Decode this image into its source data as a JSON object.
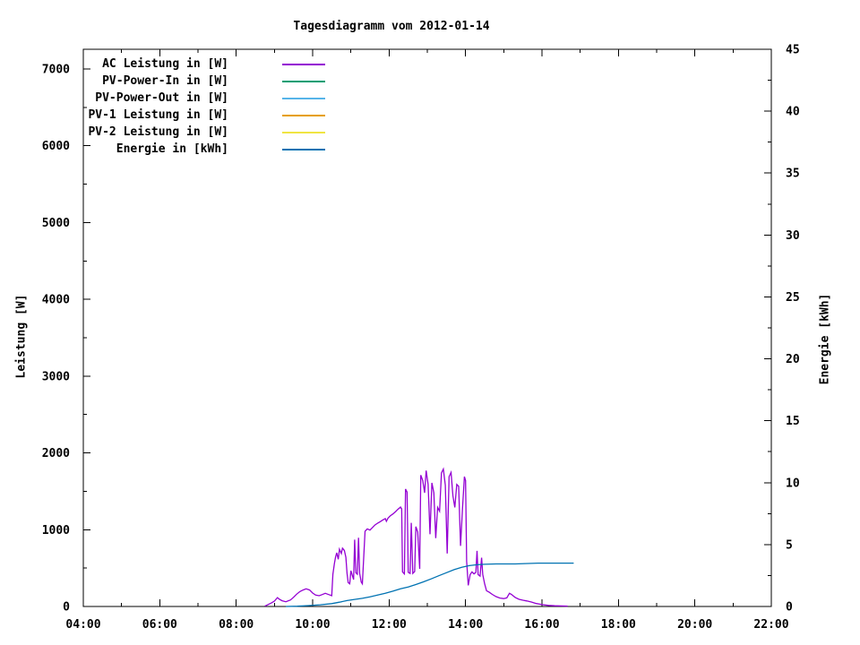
{
  "chart_data": {
    "type": "line",
    "title": "Tagesdiagramm vom 2012-01-14",
    "xlabel": "",
    "ylabel_left": "Leistung [W]",
    "ylabel_right": "Energie [kWh]",
    "x_axis": {
      "range_hours": [
        4,
        22
      ],
      "major_tick_hours": [
        4,
        6,
        8,
        10,
        12,
        14,
        16,
        18,
        20,
        22
      ],
      "minor_tick_hours": [
        5,
        7,
        9,
        11,
        13,
        15,
        17,
        19,
        21
      ],
      "tick_labels": [
        "04:00",
        "06:00",
        "08:00",
        "10:00",
        "12:00",
        "14:00",
        "16:00",
        "18:00",
        "20:00",
        "22:00"
      ]
    },
    "y_left_axis": {
      "label": "Leistung [W]",
      "range": [
        0,
        7250
      ],
      "major_ticks": [
        0,
        1000,
        2000,
        3000,
        4000,
        5000,
        6000,
        7000
      ],
      "minor_tick_step": 500,
      "tick_labels": [
        "0",
        "1000",
        "2000",
        "3000",
        "4000",
        "5000",
        "6000",
        "7000"
      ]
    },
    "y_right_axis": {
      "label": "Energie [kWh]",
      "range": [
        0,
        45
      ],
      "major_ticks": [
        0,
        5,
        10,
        15,
        20,
        25,
        30,
        35,
        40,
        45
      ],
      "minor_tick_step": 2.5,
      "tick_labels": [
        "0",
        "5",
        "10",
        "15",
        "20",
        "25",
        "30",
        "35",
        "40",
        "45"
      ]
    },
    "grid": false,
    "legend_position": "top-left-inside",
    "colors": {
      "foreground": "#000000",
      "background": "#ffffff"
    },
    "legend": [
      {
        "label": "AC Leistung in [W]",
        "color": "#9400D3"
      },
      {
        "label": "PV-Power-In in [W]",
        "color": "#009E73"
      },
      {
        "label": "PV-Power-Out in [W]",
        "color": "#56B4E9"
      },
      {
        "label": "PV-1 Leistung in [W]",
        "color": "#E69F00"
      },
      {
        "label": "PV-2 Leistung in [W]",
        "color": "#F0E442"
      },
      {
        "label": "Energie in [kWh]",
        "color": "#0072B2"
      }
    ],
    "series": [
      {
        "name": "AC Leistung in [W]",
        "color": "#9400D3",
        "axis": "y1",
        "unit": "W",
        "points": [
          [
            8.75,
            5
          ],
          [
            8.83,
            25
          ],
          [
            8.92,
            45
          ],
          [
            9.0,
            70
          ],
          [
            9.08,
            115
          ],
          [
            9.13,
            95
          ],
          [
            9.2,
            75
          ],
          [
            9.3,
            62
          ],
          [
            9.42,
            85
          ],
          [
            9.5,
            120
          ],
          [
            9.58,
            160
          ],
          [
            9.67,
            195
          ],
          [
            9.75,
            215
          ],
          [
            9.83,
            230
          ],
          [
            9.92,
            215
          ],
          [
            10.0,
            175
          ],
          [
            10.08,
            148
          ],
          [
            10.17,
            140
          ],
          [
            10.25,
            155
          ],
          [
            10.33,
            172
          ],
          [
            10.42,
            155
          ],
          [
            10.5,
            140
          ],
          [
            10.53,
            420
          ],
          [
            10.57,
            560
          ],
          [
            10.6,
            645
          ],
          [
            10.63,
            700
          ],
          [
            10.67,
            615
          ],
          [
            10.7,
            745
          ],
          [
            10.75,
            690
          ],
          [
            10.78,
            760
          ],
          [
            10.83,
            730
          ],
          [
            10.87,
            640
          ],
          [
            10.9,
            430
          ],
          [
            10.93,
            310
          ],
          [
            10.97,
            295
          ],
          [
            11.0,
            465
          ],
          [
            11.03,
            420
          ],
          [
            11.07,
            350
          ],
          [
            11.1,
            870
          ],
          [
            11.13,
            440
          ],
          [
            11.17,
            420
          ],
          [
            11.2,
            895
          ],
          [
            11.23,
            430
          ],
          [
            11.27,
            320
          ],
          [
            11.3,
            295
          ],
          [
            11.37,
            980
          ],
          [
            11.43,
            1010
          ],
          [
            11.5,
            995
          ],
          [
            11.57,
            1030
          ],
          [
            11.63,
            1060
          ],
          [
            11.7,
            1085
          ],
          [
            11.77,
            1105
          ],
          [
            11.83,
            1125
          ],
          [
            11.9,
            1145
          ],
          [
            11.93,
            1110
          ],
          [
            11.97,
            1150
          ],
          [
            12.03,
            1180
          ],
          [
            12.1,
            1205
          ],
          [
            12.17,
            1235
          ],
          [
            12.23,
            1265
          ],
          [
            12.3,
            1295
          ],
          [
            12.33,
            1270
          ],
          [
            12.35,
            450
          ],
          [
            12.4,
            425
          ],
          [
            12.43,
            1530
          ],
          [
            12.47,
            1490
          ],
          [
            12.5,
            445
          ],
          [
            12.55,
            430
          ],
          [
            12.58,
            1090
          ],
          [
            12.62,
            430
          ],
          [
            12.67,
            455
          ],
          [
            12.7,
            1040
          ],
          [
            12.75,
            970
          ],
          [
            12.8,
            490
          ],
          [
            12.83,
            1710
          ],
          [
            12.88,
            1640
          ],
          [
            12.93,
            1480
          ],
          [
            12.97,
            1770
          ],
          [
            13.02,
            1590
          ],
          [
            13.07,
            940
          ],
          [
            13.12,
            1610
          ],
          [
            13.17,
            1480
          ],
          [
            13.22,
            890
          ],
          [
            13.27,
            1290
          ],
          [
            13.32,
            1240
          ],
          [
            13.37,
            1740
          ],
          [
            13.42,
            1790
          ],
          [
            13.47,
            1580
          ],
          [
            13.52,
            690
          ],
          [
            13.57,
            1690
          ],
          [
            13.62,
            1745
          ],
          [
            13.67,
            1440
          ],
          [
            13.72,
            1290
          ],
          [
            13.77,
            1590
          ],
          [
            13.82,
            1565
          ],
          [
            13.87,
            790
          ],
          [
            13.92,
            1280
          ],
          [
            13.97,
            1690
          ],
          [
            14.0,
            1640
          ],
          [
            14.03,
            590
          ],
          [
            14.07,
            275
          ],
          [
            14.12,
            415
          ],
          [
            14.17,
            450
          ],
          [
            14.22,
            425
          ],
          [
            14.27,
            445
          ],
          [
            14.3,
            725
          ],
          [
            14.33,
            415
          ],
          [
            14.38,
            395
          ],
          [
            14.42,
            635
          ],
          [
            14.45,
            415
          ],
          [
            14.5,
            295
          ],
          [
            14.55,
            205
          ],
          [
            14.62,
            185
          ],
          [
            14.7,
            158
          ],
          [
            14.8,
            128
          ],
          [
            14.9,
            110
          ],
          [
            15.0,
            103
          ],
          [
            15.08,
            112
          ],
          [
            15.15,
            172
          ],
          [
            15.2,
            158
          ],
          [
            15.3,
            118
          ],
          [
            15.4,
            93
          ],
          [
            15.5,
            82
          ],
          [
            15.6,
            72
          ],
          [
            15.72,
            58
          ],
          [
            15.85,
            38
          ],
          [
            16.0,
            24
          ],
          [
            16.17,
            14
          ],
          [
            16.33,
            9
          ],
          [
            16.5,
            7
          ],
          [
            16.67,
            5
          ]
        ]
      },
      {
        "name": "PV-Power-In in [W]",
        "color": "#009E73",
        "axis": "y1",
        "unit": "W",
        "points": []
      },
      {
        "name": "PV-Power-Out in [W]",
        "color": "#56B4E9",
        "axis": "y1",
        "unit": "W",
        "points": []
      },
      {
        "name": "PV-1 Leistung in [W]",
        "color": "#E69F00",
        "axis": "y1",
        "unit": "W",
        "points": []
      },
      {
        "name": "PV-2 Leistung in [W]",
        "color": "#F0E442",
        "axis": "y1",
        "unit": "W",
        "points": []
      },
      {
        "name": "Energie in [kWh]",
        "color": "#0072B2",
        "axis": "y2",
        "unit": "kWh",
        "points": [
          [
            9.3,
            0
          ],
          [
            9.6,
            0.02
          ],
          [
            9.9,
            0.07
          ],
          [
            10.2,
            0.14
          ],
          [
            10.5,
            0.23
          ],
          [
            10.7,
            0.35
          ],
          [
            10.9,
            0.48
          ],
          [
            11.1,
            0.57
          ],
          [
            11.3,
            0.66
          ],
          [
            11.5,
            0.78
          ],
          [
            11.7,
            0.92
          ],
          [
            11.9,
            1.07
          ],
          [
            12.1,
            1.24
          ],
          [
            12.3,
            1.43
          ],
          [
            12.5,
            1.58
          ],
          [
            12.7,
            1.77
          ],
          [
            12.9,
            1.99
          ],
          [
            13.1,
            2.23
          ],
          [
            13.3,
            2.48
          ],
          [
            13.5,
            2.73
          ],
          [
            13.7,
            2.97
          ],
          [
            13.9,
            3.17
          ],
          [
            14.1,
            3.3
          ],
          [
            14.3,
            3.37
          ],
          [
            14.5,
            3.41
          ],
          [
            14.8,
            3.44
          ],
          [
            15.3,
            3.44
          ],
          [
            15.9,
            3.5
          ],
          [
            16.83,
            3.5
          ]
        ]
      }
    ]
  }
}
